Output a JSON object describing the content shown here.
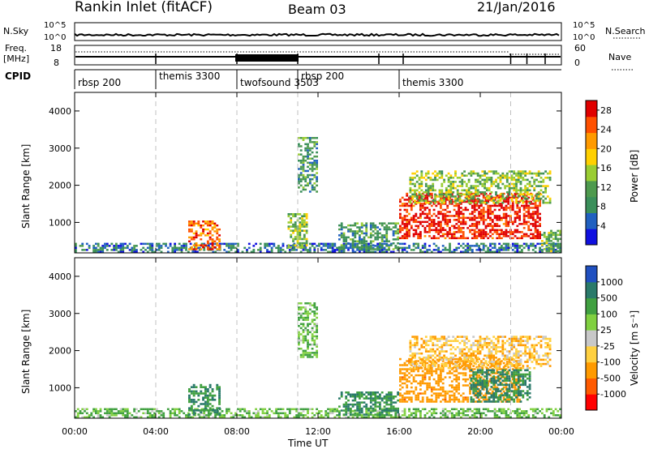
{
  "header": {
    "title": "Rankin Inlet (fitACF)",
    "beam": "Beam 03",
    "date": "21/Jan/2016"
  },
  "top_panels": {
    "nsky_label": "N.Sky",
    "nsky_ticks": [
      "10^5",
      "10^0"
    ],
    "nsearch_label": "N.Search",
    "freq_label": "Freq.",
    "freq_unit": "[MHz]",
    "freq_ticks": [
      "18",
      "8"
    ],
    "nave_label": "Nave",
    "nave_ticks": [
      "60",
      "0"
    ],
    "cpid_label": "CPID",
    "cpid_segments": [
      {
        "label": "rbsp 200",
        "start": 0.0,
        "end": 4.0
      },
      {
        "label": "themis 3300",
        "start": 4.0,
        "end": 8.0
      },
      {
        "label": "twofsound 3503",
        "start": 8.0,
        "end": 11.0
      },
      {
        "label": "rbsp 200",
        "start": 11.0,
        "end": 16.0
      },
      {
        "label": "themis 3300",
        "start": 16.0,
        "end": 21.5
      }
    ]
  },
  "chart_data": [
    {
      "type": "heatmap",
      "title": "Power",
      "xlabel": "",
      "ylabel": "Slant Range [km]",
      "xlim": [
        0,
        24
      ],
      "ylim": [
        180,
        4500
      ],
      "yticks": [
        "1000",
        "2000",
        "3000",
        "4000"
      ],
      "colorbar_label": "Power [dB]",
      "colorbar_ticks": [
        "4",
        "8",
        "12",
        "16",
        "20",
        "24",
        "28"
      ],
      "colorbar_range": [
        0,
        30
      ],
      "cpid_change_times": [
        4.0,
        8.0,
        11.0,
        21.5
      ],
      "echo_regions": [
        {
          "t_start": 0.0,
          "t_end": 24.0,
          "r_start": 180,
          "r_end": 450,
          "value": 6
        },
        {
          "t_start": 5.6,
          "t_end": 7.2,
          "r_start": 250,
          "r_end": 1050,
          "value": 24
        },
        {
          "t_start": 10.5,
          "t_end": 11.5,
          "r_start": 300,
          "r_end": 1250,
          "value": 14
        },
        {
          "t_start": 13.0,
          "t_end": 16.0,
          "r_start": 250,
          "r_end": 1000,
          "value": 10
        },
        {
          "t_start": 16.0,
          "t_end": 23.0,
          "r_start": 550,
          "r_end": 1800,
          "value": 28
        },
        {
          "t_start": 16.5,
          "t_end": 23.5,
          "r_start": 1500,
          "r_end": 2400,
          "value": 14
        },
        {
          "t_start": 11.0,
          "t_end": 12.0,
          "r_start": 1800,
          "r_end": 3300,
          "value": 10
        },
        {
          "t_start": 23.0,
          "t_end": 24.0,
          "r_start": 200,
          "r_end": 800,
          "value": 12
        }
      ]
    },
    {
      "type": "heatmap",
      "title": "Velocity",
      "xlabel": "Time UT",
      "ylabel": "Slant Range [km]",
      "xlim": [
        0,
        24
      ],
      "ylim": [
        180,
        4500
      ],
      "xticks": [
        "00:00",
        "04:00",
        "08:00",
        "12:00",
        "16:00",
        "20:00",
        "00:00"
      ],
      "yticks": [
        "1000",
        "2000",
        "3000",
        "4000"
      ],
      "colorbar_label": "Velocity [m s⁻¹]",
      "colorbar_ticks": [
        "1000",
        "500",
        "100",
        "25",
        "-25",
        "-100",
        "-500",
        "-1000"
      ],
      "cpid_change_times": [
        4.0,
        8.0,
        11.0,
        21.5
      ],
      "echo_regions": [
        {
          "t_start": 0.0,
          "t_end": 24.0,
          "r_start": 180,
          "r_end": 450,
          "value": 100
        },
        {
          "t_start": 5.6,
          "t_end": 7.2,
          "r_start": 250,
          "r_end": 1100,
          "value": 500
        },
        {
          "t_start": 13.0,
          "t_end": 16.0,
          "r_start": 250,
          "r_end": 900,
          "value": 500
        },
        {
          "t_start": 16.0,
          "t_end": 22.0,
          "r_start": 600,
          "r_end": 1800,
          "value": -300
        },
        {
          "t_start": 19.5,
          "t_end": 22.5,
          "r_start": 600,
          "r_end": 1500,
          "value": 600
        },
        {
          "t_start": 16.5,
          "t_end": 23.5,
          "r_start": 1500,
          "r_end": 2400,
          "value": -80
        },
        {
          "t_start": 11.0,
          "t_end": 12.0,
          "r_start": 1800,
          "r_end": 3300,
          "value": 100
        }
      ]
    }
  ],
  "colors": {
    "power_scale": [
      "#1010e0",
      "#2060c0",
      "#3a8f5a",
      "#4e9a4e",
      "#9acd32",
      "#ffd000",
      "#ff9a00",
      "#ff5000",
      "#e00000"
    ],
    "velocity_scale": [
      "#ff0000",
      "#ff5a00",
      "#ff9a00",
      "#ffd040",
      "#c8c8c8",
      "#80d040",
      "#40a040",
      "#2a7a6a",
      "#2050c0"
    ]
  }
}
